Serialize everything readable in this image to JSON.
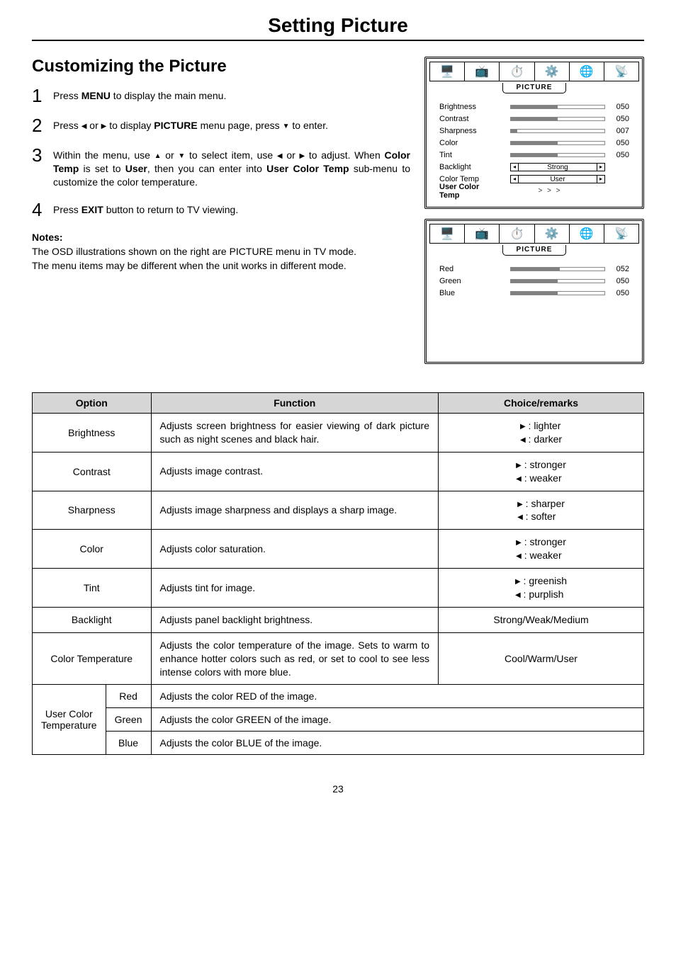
{
  "page": {
    "title": "Setting Picture",
    "number": "23"
  },
  "section": {
    "heading": "Customizing the Picture",
    "steps": [
      {
        "num": "1",
        "html": "Press <b>MENU</b> to display the main menu."
      },
      {
        "num": "2",
        "html": "Press <span class='tri'>◀</span> or <span class='tri'>▶</span> to display <b>PICTURE</b> menu page, press <span class='tri'>▼</span> to enter."
      },
      {
        "num": "3",
        "html": "Within the menu, use <span class='tri'>▲</span> or <span class='tri'>▼</span> to select item, use <span class='tri'>◀</span> or <span class='tri'>▶</span> to adjust. When <b>Color Temp</b> is set to <b>User</b>, then you can enter into <b>User Color Temp</b> sub-menu to customize the color temperature."
      },
      {
        "num": "4",
        "html": "Press <b>EXIT</b> button to return to TV viewing."
      }
    ],
    "notes": {
      "label": "Notes",
      "lines": [
        "The OSD illustrations shown on the right are PICTURE menu in TV mode.",
        "The menu items may be different when the unit works in different mode."
      ]
    }
  },
  "osd": {
    "tab_label": "PICTURE",
    "icons": [
      "🖥️",
      "📺",
      "⏱️",
      "⚙️",
      "🌐",
      "📡"
    ],
    "panel1": {
      "sliders": [
        {
          "label": "Brightness",
          "value": "050",
          "fill": 50
        },
        {
          "label": "Contrast",
          "value": "050",
          "fill": 50
        },
        {
          "label": "Sharpness",
          "value": "007",
          "fill": 7
        },
        {
          "label": "Color",
          "value": "050",
          "fill": 50
        },
        {
          "label": "Tint",
          "value": "050",
          "fill": 50
        }
      ],
      "selects": [
        {
          "label": "Backlight",
          "value": "Strong"
        },
        {
          "label": "Color Temp",
          "value": "User"
        }
      ],
      "footer_label": "User Color Temp",
      "more": "> > >"
    },
    "panel2": {
      "sliders": [
        {
          "label": "Red",
          "value": "052",
          "fill": 52
        },
        {
          "label": "Green",
          "value": "050",
          "fill": 50
        },
        {
          "label": "Blue",
          "value": "050",
          "fill": 50
        }
      ]
    }
  },
  "table": {
    "headers": {
      "option": "Option",
      "function": "Function",
      "choice": "Choice/remarks"
    },
    "rows": [
      {
        "option": "Brightness",
        "function": "Adjusts screen brightness for easier viewing of dark picture such as night scenes and black hair.",
        "choice_html": "<span class='tri'>▶</span> : lighter<br><span class='tri'>◀</span> : darker"
      },
      {
        "option": "Contrast",
        "function": "Adjusts image contrast.",
        "choice_html": "<span class='tri'>▶</span> : stronger<br><span class='tri'>◀</span> : weaker"
      },
      {
        "option": "Sharpness",
        "function": "Adjusts image sharpness and displays a sharp image.",
        "choice_html": "<span class='tri'>▶</span> : sharper<br><span class='tri'>◀</span> : softer"
      },
      {
        "option": "Color",
        "function": "Adjusts color saturation.",
        "choice_html": "<span class='tri'>▶</span> : stronger<br><span class='tri'>◀</span> : weaker"
      },
      {
        "option": "Tint",
        "function": "Adjusts tint for image.",
        "choice_html": "<span class='tri'>▶</span> : greenish<br><span class='tri'>◀</span> : purplish"
      },
      {
        "option": "Backlight",
        "function": "Adjusts panel backlight brightness.",
        "choice_html": "Strong/Weak/Medium"
      },
      {
        "option": "Color Temperature",
        "function": "Adjusts the color temperature of the image. Sets to warm to enhance hotter colors such as red, or set to cool to see less intense colors with more blue.",
        "choice_html": "Cool/Warm/User"
      }
    ],
    "user_color_temp": {
      "group_label": "User Color Temperature",
      "rows": [
        {
          "sub": "Red",
          "function": "Adjusts the color RED of the image."
        },
        {
          "sub": "Green",
          "function": "Adjusts the color GREEN of the image."
        },
        {
          "sub": "Blue",
          "function": "Adjusts the color BLUE of the image."
        }
      ]
    }
  }
}
